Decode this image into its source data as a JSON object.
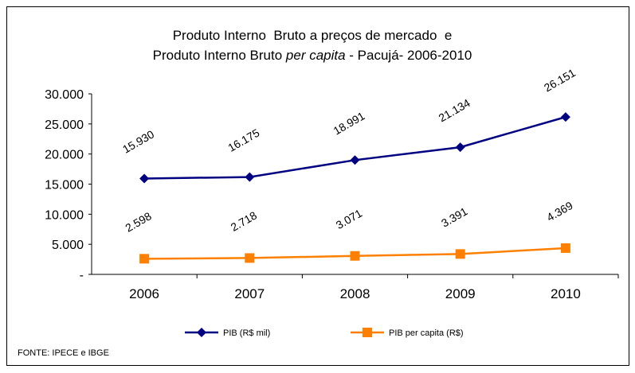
{
  "chart_data": {
    "type": "line",
    "title": {
      "line1": "Produto Interno  Bruto a preços de mercado  e",
      "line2": [
        "Produto Interno Bruto ",
        "per capita",
        " - Pacujá- 2006-2010"
      ]
    },
    "categories": [
      "2006",
      "2007",
      "2008",
      "2009",
      "2010"
    ],
    "series": [
      {
        "name": "PIB (R$ mil)",
        "color": "#000080",
        "marker": "diamond",
        "values": [
          15930,
          16175,
          18991,
          21134,
          26151
        ],
        "value_labels": [
          "15.930",
          "16.175",
          "18.991",
          "21.134",
          "26.151"
        ]
      },
      {
        "name": "PIB per capita (R$)",
        "color": "#FF8000",
        "marker": "square",
        "values": [
          2598,
          2718,
          3071,
          3391,
          4369
        ],
        "value_labels": [
          "2.598",
          "2.718",
          "3.071",
          "3.391",
          "4.369"
        ]
      }
    ],
    "ylim": [
      0,
      30000
    ],
    "yticks": [
      {
        "value": 0,
        "label": "-"
      },
      {
        "value": 5000,
        "label": "5.000"
      },
      {
        "value": 10000,
        "label": "10.000"
      },
      {
        "value": 15000,
        "label": "15.000"
      },
      {
        "value": 20000,
        "label": "20.000"
      },
      {
        "value": 25000,
        "label": "25.000"
      },
      {
        "value": 30000,
        "label": "30.000"
      }
    ],
    "grid": false,
    "legend": "bottom",
    "source": "FONTE: IPECE e IBGE"
  }
}
